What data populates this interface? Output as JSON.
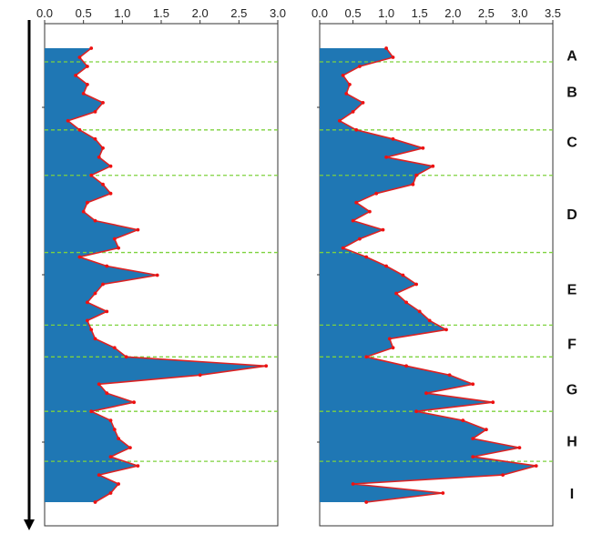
{
  "colors": {
    "area_fill": "#1f77b4",
    "line": "#dd2222",
    "marker": "#ee1111",
    "boundary": "#7ed23e",
    "frame": "#333333",
    "arrow": "#000000"
  },
  "chart_data": [
    {
      "type": "area",
      "orientation": "vertical-profile",
      "xlim": [
        0,
        3.0
      ],
      "xticks": [
        "0.0",
        "0.5",
        "1.0",
        "1.5",
        "2.0",
        "2.5",
        "3.0"
      ],
      "xtick_values": [
        0,
        0.5,
        1.0,
        1.5,
        2.0,
        2.5,
        3.0
      ],
      "depth": [
        0,
        2,
        4,
        6,
        8,
        10,
        12,
        14,
        16,
        18,
        20,
        22,
        24,
        26,
        28,
        30,
        32,
        34,
        36,
        38,
        40,
        42,
        44,
        46,
        48,
        50,
        52,
        54,
        56,
        58,
        60,
        62,
        64,
        66,
        68,
        70,
        72,
        74,
        76,
        78,
        80,
        82,
        84,
        86,
        88,
        90,
        92,
        94,
        96,
        98,
        100
      ],
      "values": [
        0.6,
        0.45,
        0.55,
        0.4,
        0.55,
        0.5,
        0.75,
        0.65,
        0.3,
        0.45,
        0.65,
        0.75,
        0.7,
        0.85,
        0.6,
        0.75,
        0.85,
        0.55,
        0.5,
        0.65,
        1.2,
        0.9,
        0.95,
        0.45,
        0.8,
        1.45,
        0.75,
        0.65,
        0.55,
        0.8,
        0.55,
        0.6,
        0.65,
        0.9,
        1.05,
        2.85,
        2.0,
        0.7,
        0.8,
        1.15,
        0.6,
        0.85,
        0.9,
        0.95,
        1.1,
        0.85,
        1.2,
        0.7,
        0.95,
        0.85,
        0.65
      ]
    },
    {
      "type": "area",
      "orientation": "vertical-profile",
      "xlim": [
        0,
        3.5
      ],
      "xticks": [
        "0.0",
        "0.5",
        "1.0",
        "1.5",
        "2.0",
        "2.5",
        "3.0",
        "3.5"
      ],
      "xtick_values": [
        0,
        0.5,
        1.0,
        1.5,
        2.0,
        2.5,
        3.0,
        3.5
      ],
      "depth": [
        0,
        2,
        4,
        6,
        8,
        10,
        12,
        14,
        16,
        18,
        20,
        22,
        24,
        26,
        28,
        30,
        32,
        34,
        36,
        38,
        40,
        42,
        44,
        46,
        48,
        50,
        52,
        54,
        56,
        58,
        60,
        62,
        64,
        66,
        68,
        70,
        72,
        74,
        76,
        78,
        80,
        82,
        84,
        86,
        88,
        90,
        92,
        94,
        96,
        98,
        100
      ],
      "values": [
        1.0,
        1.1,
        0.6,
        0.35,
        0.45,
        0.4,
        0.65,
        0.5,
        0.3,
        0.55,
        1.1,
        1.55,
        1.0,
        1.7,
        1.45,
        1.4,
        0.85,
        0.55,
        0.75,
        0.5,
        0.95,
        0.6,
        0.35,
        0.7,
        1.0,
        1.25,
        1.45,
        1.15,
        1.3,
        1.5,
        1.65,
        1.9,
        1.05,
        1.1,
        0.7,
        1.3,
        1.95,
        2.3,
        1.6,
        2.6,
        1.45,
        2.15,
        2.5,
        2.3,
        3.0,
        2.3,
        3.25,
        2.75,
        0.5,
        1.85,
        0.7
      ]
    }
  ],
  "zones": [
    {
      "label": "A",
      "depth": 1.5
    },
    {
      "label": "B",
      "depth": 9.5
    },
    {
      "label": "C",
      "depth": 20.5
    },
    {
      "label": "D",
      "depth": 36.5
    },
    {
      "label": "E",
      "depth": 53
    },
    {
      "label": "F",
      "depth": 65
    },
    {
      "label": "G",
      "depth": 75
    },
    {
      "label": "H",
      "depth": 86.5
    },
    {
      "label": "I",
      "depth": 98
    }
  ],
  "zone_boundaries": [
    3,
    18,
    28,
    45,
    61,
    68,
    80,
    91
  ]
}
